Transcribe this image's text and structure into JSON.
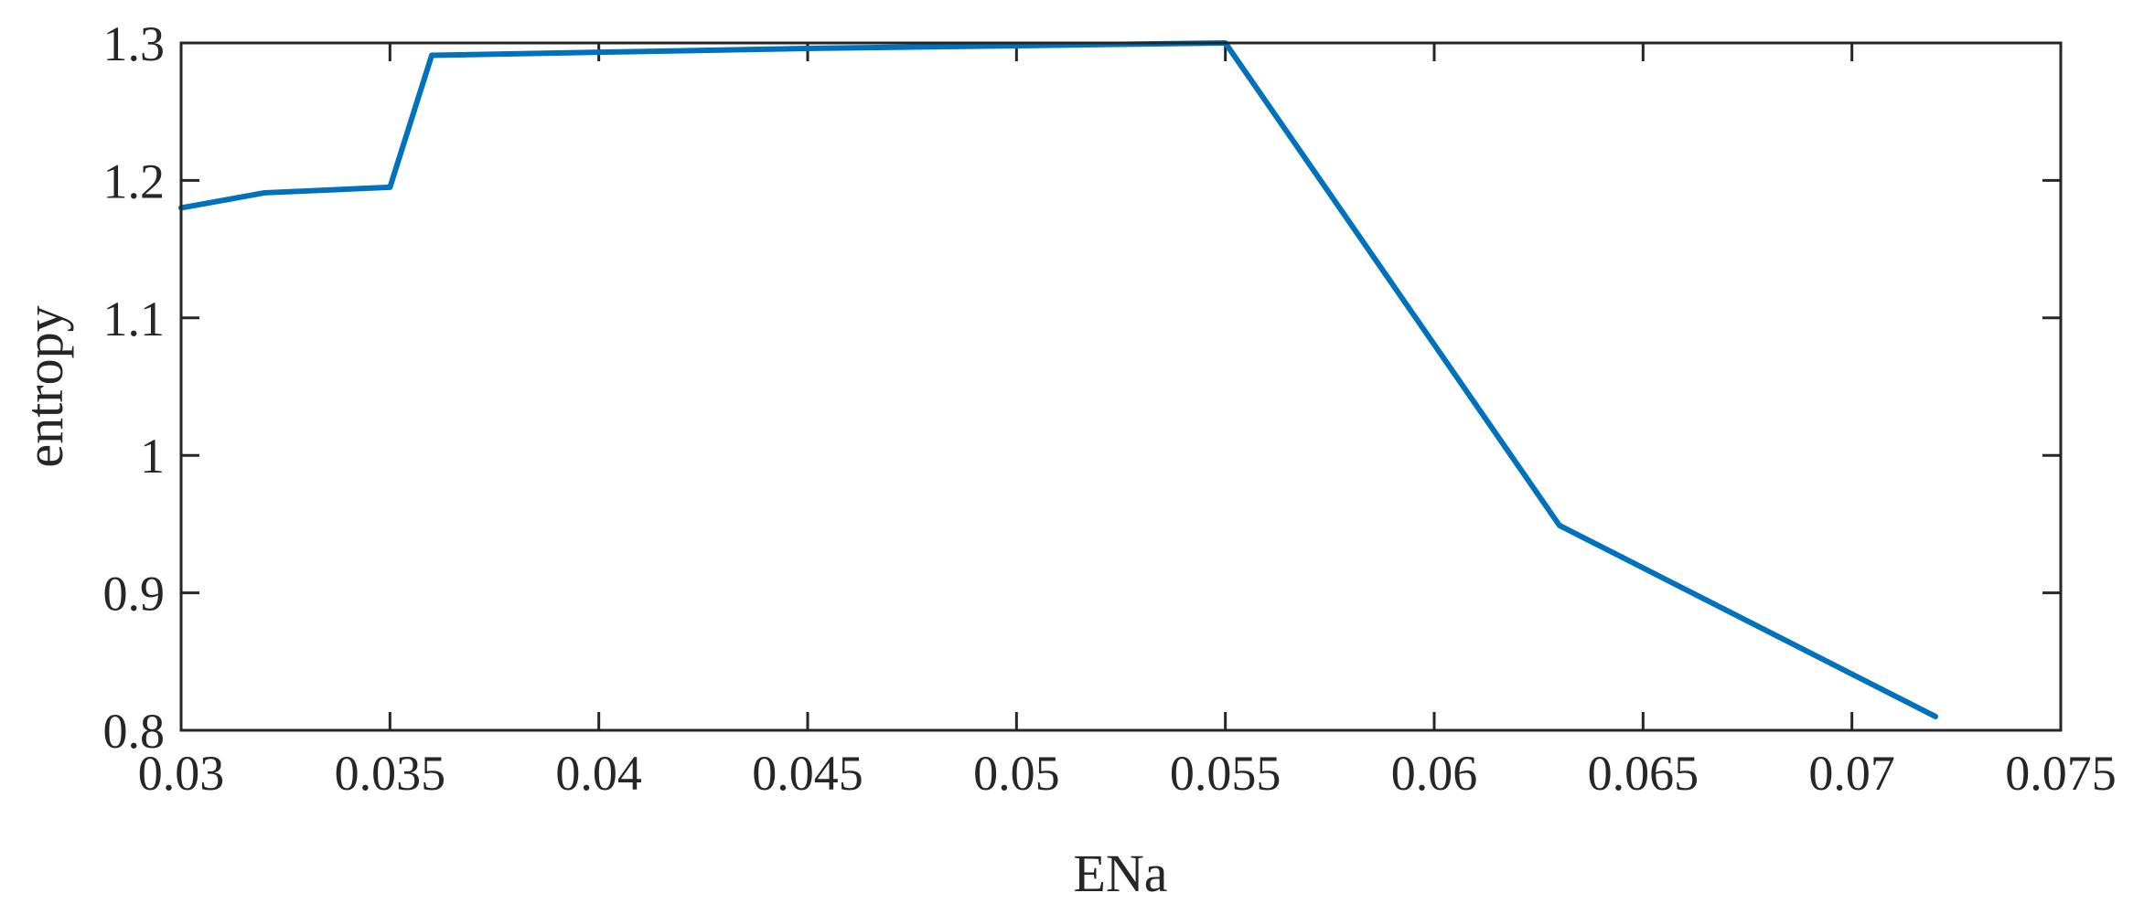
{
  "chart_data": {
    "type": "line",
    "title": "",
    "xlabel": "ENa",
    "ylabel": "entropy",
    "xlim": [
      0.03,
      0.075
    ],
    "ylim": [
      0.8,
      1.3
    ],
    "grid": false,
    "xticks": [
      0.03,
      0.035,
      0.04,
      0.045,
      0.05,
      0.055,
      0.06,
      0.065,
      0.07,
      0.075
    ],
    "xtick_labels": [
      "0.03",
      "0.035",
      "0.04",
      "0.045",
      "0.05",
      "0.055",
      "0.06",
      "0.065",
      "0.07",
      "0.075"
    ],
    "yticks": [
      0.8,
      0.9,
      1.0,
      1.1,
      1.2,
      1.3
    ],
    "ytick_labels": [
      "0.8",
      "0.9",
      "1",
      "1.1",
      "1.2",
      "1.3"
    ],
    "series": [
      {
        "color": "#0072BD",
        "x": [
          0.03,
          0.032,
          0.035,
          0.036,
          0.045,
          0.055,
          0.063,
          0.072
        ],
        "y": [
          1.18,
          1.191,
          1.195,
          1.291,
          1.296,
          1.3,
          0.949,
          0.81
        ]
      }
    ]
  }
}
